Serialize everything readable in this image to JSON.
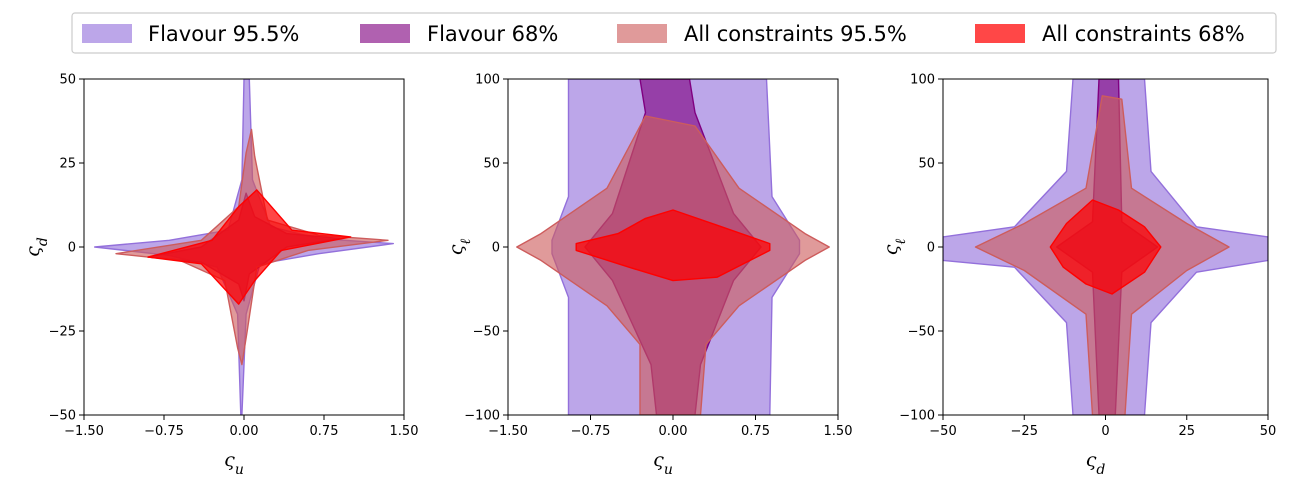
{
  "legend": {
    "placement": "top-center",
    "items": [
      {
        "label": "Flavour 95.5%",
        "color": "#9370DB",
        "opacity": 0.62
      },
      {
        "label": "Flavour 68%",
        "color": "#800080",
        "opacity": 0.62
      },
      {
        "label": "All constraints 95.5%",
        "color": "#CD5C5C",
        "opacity": 0.62
      },
      {
        "label": "All constraints 68%",
        "color": "#FF0000",
        "opacity": 0.72
      }
    ]
  },
  "chart_data": [
    {
      "type": "area",
      "xlabel": "ς_u",
      "ylabel": "ς_d",
      "xlim": [
        -1.5,
        1.5
      ],
      "ylim": [
        -50,
        50
      ],
      "xticks": [
        -1.5,
        -0.75,
        0.0,
        0.75,
        1.5
      ],
      "xtick_labels": [
        "−1.50",
        "−0.75",
        "0.00",
        "0.75",
        "1.50"
      ],
      "yticks": [
        -50,
        -25,
        0,
        25,
        50
      ],
      "ytick_labels": [
        "−50",
        "−25",
        "0",
        "25",
        "50"
      ],
      "grid": false,
      "series": [
        {
          "name": "Flavour 95.5%",
          "contour": [
            [
              1.4,
              1
            ],
            [
              0.7,
              2.5
            ],
            [
              0.25,
              6
            ],
            [
              0.08,
              20
            ],
            [
              0.05,
              50
            ],
            [
              0.0,
              50
            ],
            [
              -0.02,
              20
            ],
            [
              -0.15,
              5
            ],
            [
              -0.7,
              2
            ],
            [
              -1.4,
              0
            ],
            [
              -0.7,
              -2.5
            ],
            [
              -0.25,
              -6
            ],
            [
              -0.06,
              -20
            ],
            [
              -0.03,
              -50
            ],
            [
              -0.02,
              -50
            ],
            [
              0.02,
              -20
            ],
            [
              0.15,
              -5
            ],
            [
              0.7,
              -2
            ]
          ]
        },
        {
          "name": "Flavour 68%",
          "contour": [
            [
              0.9,
              2.5
            ],
            [
              0.4,
              4
            ],
            [
              0.1,
              9
            ],
            [
              0.02,
              16
            ],
            [
              -0.05,
              8
            ],
            [
              -0.4,
              0
            ],
            [
              -0.9,
              -3
            ],
            [
              -0.4,
              -4.5
            ],
            [
              -0.05,
              -11
            ],
            [
              0.0,
              -16
            ],
            [
              0.05,
              -8
            ],
            [
              0.4,
              0
            ]
          ]
        },
        {
          "name": "All constraints 95.5%",
          "contour": [
            [
              1.35,
              2
            ],
            [
              0.7,
              3.5
            ],
            [
              0.22,
              8
            ],
            [
              0.1,
              27
            ],
            [
              0.07,
              35
            ],
            [
              0.02,
              28
            ],
            [
              -0.05,
              12
            ],
            [
              -0.4,
              2
            ],
            [
              -1.2,
              -2
            ],
            [
              -0.6,
              -4
            ],
            [
              -0.18,
              -10
            ],
            [
              -0.06,
              -30
            ],
            [
              -0.02,
              -35
            ],
            [
              0.03,
              -25
            ],
            [
              0.12,
              -6
            ],
            [
              0.6,
              -1
            ]
          ]
        },
        {
          "name": "All constraints 68%",
          "contour": [
            [
              1.0,
              3
            ],
            [
              0.45,
              5
            ],
            [
              0.12,
              17
            ],
            [
              -0.05,
              12
            ],
            [
              -0.3,
              2
            ],
            [
              -0.9,
              -3
            ],
            [
              -0.4,
              -5
            ],
            [
              -0.05,
              -17
            ],
            [
              0.1,
              -10
            ],
            [
              0.35,
              -1
            ]
          ]
        }
      ]
    },
    {
      "type": "area",
      "xlabel": "ς_u",
      "ylabel": "ς_ℓ",
      "xlim": [
        -1.5,
        1.5
      ],
      "ylim": [
        -100,
        100
      ],
      "xticks": [
        -1.5,
        -0.75,
        0.0,
        0.75,
        1.5
      ],
      "xtick_labels": [
        "−1.50",
        "−0.75",
        "0.00",
        "0.75",
        "1.50"
      ],
      "yticks": [
        -100,
        -50,
        0,
        50,
        100
      ],
      "ytick_labels": [
        "−100",
        "−50",
        "0",
        "50",
        "100"
      ],
      "grid": false,
      "series": [
        {
          "name": "Flavour 95.5%",
          "contour": [
            [
              -0.95,
              100
            ],
            [
              0.85,
              100
            ],
            [
              0.9,
              30
            ],
            [
              1.15,
              4
            ],
            [
              1.15,
              -4
            ],
            [
              0.9,
              -30
            ],
            [
              0.88,
              -100
            ],
            [
              -0.95,
              -100
            ],
            [
              -0.95,
              -30
            ],
            [
              -1.1,
              -4
            ],
            [
              -1.1,
              4
            ],
            [
              -0.95,
              30
            ]
          ]
        },
        {
          "name": "Flavour 68%",
          "contour": [
            [
              -0.3,
              100
            ],
            [
              0.15,
              100
            ],
            [
              0.2,
              80
            ],
            [
              0.55,
              20
            ],
            [
              0.8,
              0
            ],
            [
              0.55,
              -20
            ],
            [
              0.25,
              -70
            ],
            [
              0.2,
              -100
            ],
            [
              -0.15,
              -100
            ],
            [
              -0.2,
              -70
            ],
            [
              -0.55,
              -20
            ],
            [
              -0.8,
              0
            ],
            [
              -0.55,
              20
            ],
            [
              -0.25,
              80
            ]
          ]
        },
        {
          "name": "All constraints 95.5%",
          "contour": [
            [
              -0.25,
              78
            ],
            [
              0.2,
              72
            ],
            [
              0.6,
              35
            ],
            [
              1.2,
              8
            ],
            [
              1.42,
              0
            ],
            [
              1.2,
              -8
            ],
            [
              0.6,
              -35
            ],
            [
              0.3,
              -58
            ],
            [
              0.25,
              -100
            ],
            [
              -0.3,
              -100
            ],
            [
              -0.3,
              -58
            ],
            [
              -0.6,
              -35
            ],
            [
              -1.2,
              -8
            ],
            [
              -1.42,
              0
            ],
            [
              -1.2,
              8
            ],
            [
              -0.6,
              35
            ]
          ]
        },
        {
          "name": "All constraints 68%",
          "contour": [
            [
              -0.25,
              17
            ],
            [
              0.0,
              22
            ],
            [
              0.4,
              13
            ],
            [
              0.88,
              2
            ],
            [
              0.88,
              -2
            ],
            [
              0.4,
              -18
            ],
            [
              0.0,
              -20
            ],
            [
              -0.4,
              -12
            ],
            [
              -0.88,
              -2
            ],
            [
              -0.88,
              2
            ],
            [
              -0.5,
              8
            ]
          ]
        }
      ]
    },
    {
      "type": "area",
      "xlabel": "ς_d",
      "ylabel": "ς_ℓ",
      "xlim": [
        -50,
        50
      ],
      "ylim": [
        -100,
        100
      ],
      "xticks": [
        -50,
        -25,
        0,
        25,
        50
      ],
      "xtick_labels": [
        "−50",
        "−25",
        "0",
        "25",
        "50"
      ],
      "yticks": [
        -100,
        -50,
        0,
        50,
        100
      ],
      "ytick_labels": [
        "−100",
        "−50",
        "0",
        "50",
        "100"
      ],
      "grid": false,
      "series": [
        {
          "name": "Flavour 95.5%",
          "contour": [
            [
              -10,
              100
            ],
            [
              12,
              100
            ],
            [
              14,
              45
            ],
            [
              28,
              12
            ],
            [
              50,
              6
            ],
            [
              50,
              -8
            ],
            [
              28,
              -15
            ],
            [
              14,
              -45
            ],
            [
              12,
              -100
            ],
            [
              -10,
              -100
            ],
            [
              -12,
              -45
            ],
            [
              -28,
              -12
            ],
            [
              -50,
              -8
            ],
            [
              -50,
              6
            ],
            [
              -28,
              12
            ],
            [
              -12,
              45
            ]
          ]
        },
        {
          "name": "Flavour 68%",
          "contour": [
            [
              -2,
              100
            ],
            [
              4,
              100
            ],
            [
              5,
              15
            ],
            [
              16,
              0
            ],
            [
              5,
              -15
            ],
            [
              3,
              -100
            ],
            [
              -2,
              -100
            ],
            [
              -4,
              -15
            ],
            [
              -15,
              0
            ],
            [
              -4,
              15
            ]
          ]
        },
        {
          "name": "All constraints 95.5%",
          "contour": [
            [
              -1,
              90
            ],
            [
              5,
              88
            ],
            [
              8,
              35
            ],
            [
              25,
              14
            ],
            [
              38,
              0
            ],
            [
              25,
              -14
            ],
            [
              8,
              -40
            ],
            [
              6,
              -100
            ],
            [
              -4,
              -100
            ],
            [
              -6,
              -40
            ],
            [
              -25,
              -14
            ],
            [
              -40,
              0
            ],
            [
              -25,
              14
            ],
            [
              -6,
              35
            ]
          ]
        },
        {
          "name": "All constraints 68%",
          "contour": [
            [
              -4,
              28
            ],
            [
              4,
              22
            ],
            [
              12,
              12
            ],
            [
              17,
              0
            ],
            [
              12,
              -15
            ],
            [
              2,
              -28
            ],
            [
              -6,
              -22
            ],
            [
              -13,
              -12
            ],
            [
              -17,
              0
            ],
            [
              -12,
              14
            ]
          ]
        }
      ]
    }
  ]
}
